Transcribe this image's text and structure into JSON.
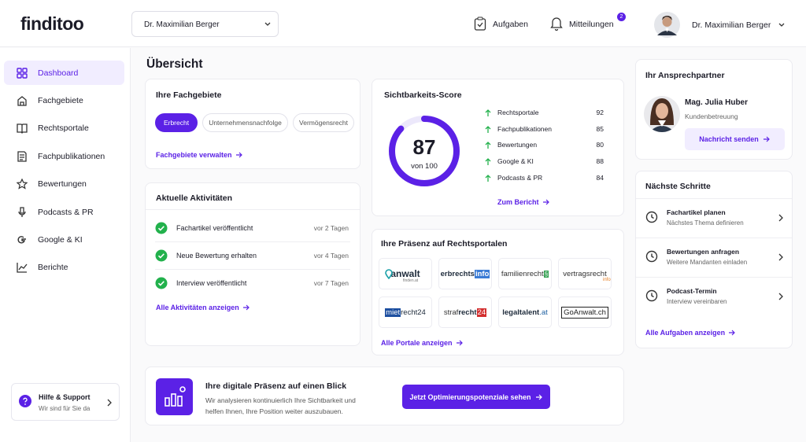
{
  "header": {
    "logo": "finditoo",
    "account_select": "Dr. Maximilian Berger",
    "tasks": "Aufgaben",
    "notifications": "Mitteilungen",
    "notification_count": 2,
    "user": "Dr. Maximilian Berger"
  },
  "sidebar": {
    "nav": [
      "Dashboard",
      "Fachgebiete",
      "Rechtsportale",
      "Fachpublikationen",
      "Bewertungen",
      "Podcasts & PR",
      "Google & KI",
      "Berichte"
    ],
    "help": {
      "title": "Hilfe & Support",
      "subtitle": "Wir sind für Sie da"
    }
  },
  "page_title": "Übersicht",
  "fachgebiete": {
    "title": "Ihre Fachgebiete",
    "tags": [
      "Erbrecht",
      "Unternehmensnachfolge",
      "Vermögensrecht"
    ],
    "link": "Fachgebiete verwalten"
  },
  "activities": {
    "title": "Aktuelle Aktivitäten",
    "items": [
      {
        "text": "Fachartikel veröffentlicht",
        "time": "vor 2 Tagen"
      },
      {
        "text": "Neue Bewertung erhalten",
        "time": "vor 4 Tagen"
      },
      {
        "text": "Interview veröffentlicht",
        "time": "vor 7 Tagen"
      }
    ],
    "link": "Alle Aktivitäten anzeigen"
  },
  "score": {
    "title": "Sichtbarkeits-Score",
    "value": 87,
    "max": {
      "value": 100,
      "label": "von 100"
    },
    "items": [
      {
        "name": "Rechtsportale",
        "value": 92
      },
      {
        "name": "Fachpublikationen",
        "value": 85
      },
      {
        "name": "Bewertungen",
        "value": 80
      },
      {
        "name": "Google & KI",
        "value": 88
      },
      {
        "name": "Podcasts & PR",
        "value": 84
      }
    ],
    "link": "Zum Bericht"
  },
  "portals": {
    "title": "Ihre Präsenz auf Rechtsportalen",
    "logos": [
      [
        "anwalt",
        "finden.at"
      ],
      [
        "erbrechts",
        "info"
      ],
      [
        "familienrecht",
        "§"
      ],
      [
        "vertragsrecht",
        "info"
      ],
      [
        "miet",
        "recht24"
      ],
      [
        "straf",
        "recht",
        "24"
      ],
      [
        "legaltalent",
        ".at"
      ],
      [
        "GoAnwalt.ch"
      ]
    ],
    "link": "Alle Portale anzeigen"
  },
  "banner": {
    "title": "Ihre digitale Präsenz auf einen Blick",
    "text": "Wir analysieren kontinuierlich Ihre Sichtbarkeit und helfen Ihnen, Ihre Position weiter auszubauen.",
    "button": "Jetzt Optimierungspotenziale sehen"
  },
  "contact": {
    "title": "Ihr Ansprechpartner",
    "name": "Mag. Julia Huber",
    "role": "Kundenbetreuung",
    "button": "Nachricht senden"
  },
  "next_steps": {
    "title": "Nächste Schritte",
    "items": [
      {
        "title": "Fachartikel planen",
        "subtitle": "Nächstes Thema definieren"
      },
      {
        "title": "Bewertungen anfragen",
        "subtitle": "Weitere Mandanten einladen"
      },
      {
        "title": "Podcast-Termin",
        "subtitle": "Interview vereinbaren"
      }
    ],
    "link": "Alle Aufgaben anzeigen"
  }
}
